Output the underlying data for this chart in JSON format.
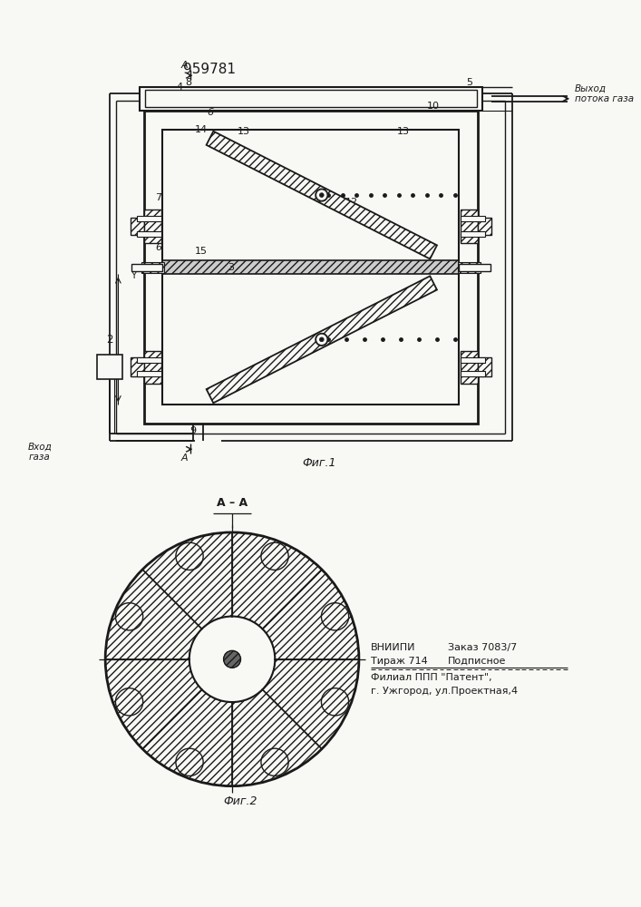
{
  "patent_number": "959781",
  "bg_color": "#f8f8f5",
  "line_color": "#1a1a1a",
  "fig1_caption": "Фиг.1",
  "fig2_caption": "Фиг.2",
  "section_label": "А–А",
  "outlet_label": "Выход\nпотока газа",
  "inlet_label": "Вход\nгаза",
  "vnipi_line1a": "ВНИИПИ",
  "vnipi_line1b": "Заказ 7083/7",
  "vnipi_line2a": "Тираж 714",
  "vnipi_line2b": "Подписное",
  "vnipi_line3": "Филиал ППП \"Патент\",",
  "vnipi_line4": "г. Ужгород, ул.Проектная,4"
}
